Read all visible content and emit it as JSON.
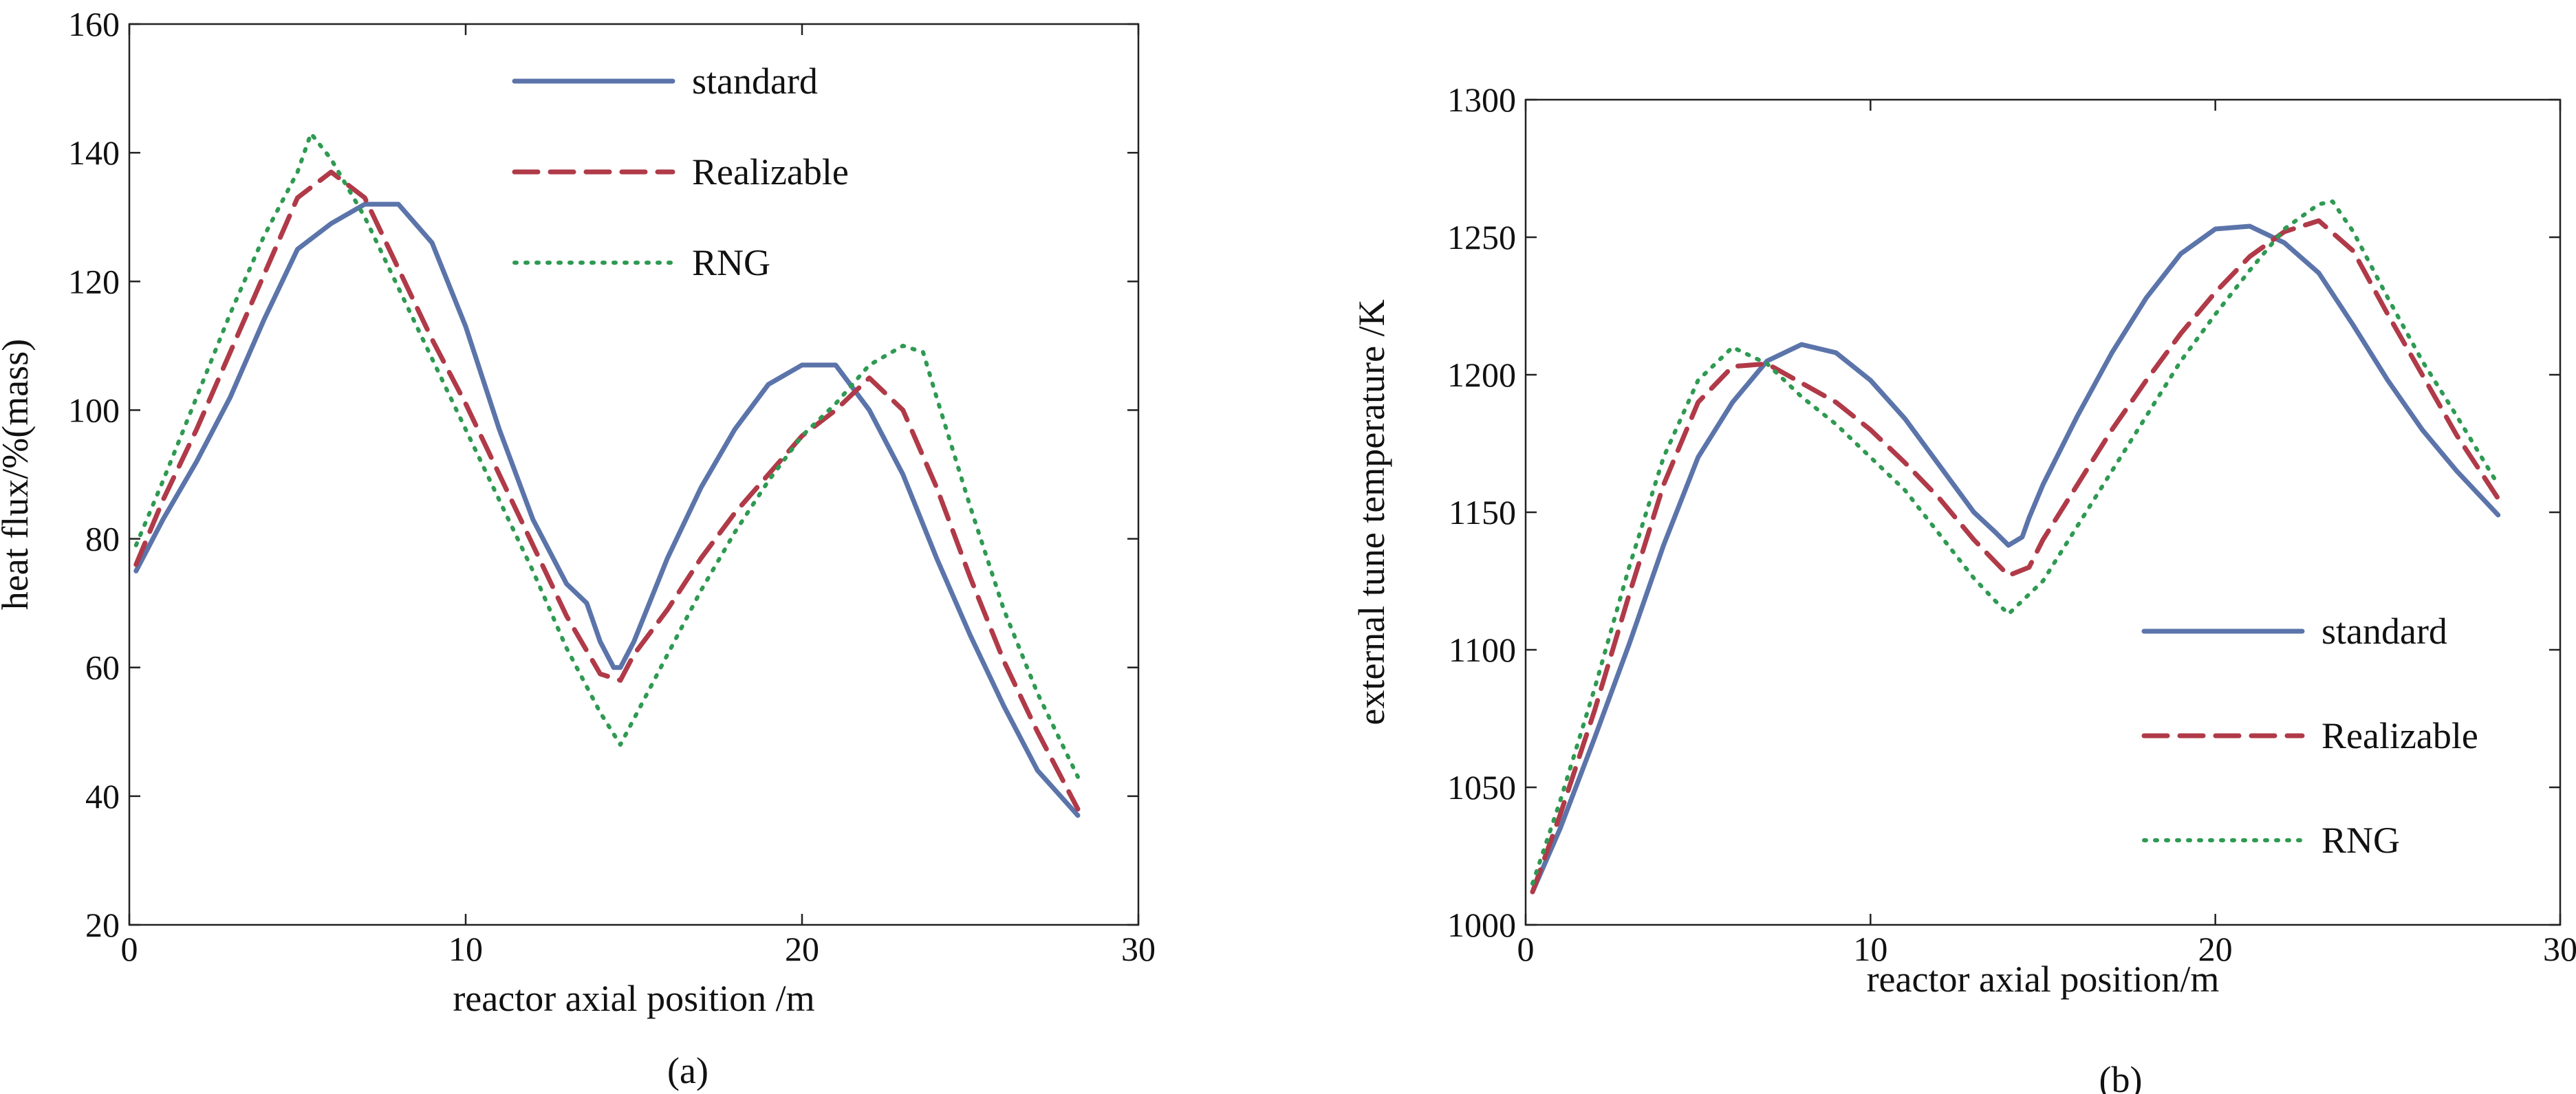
{
  "figure": {
    "panels": [
      "(a)",
      "(b)"
    ]
  },
  "colors": {
    "standard": "#5b74aa",
    "Realizable": "#b03a48",
    "RNG": "#2e9a52"
  },
  "chart_data": [
    {
      "type": "line",
      "panel_label": "(a)",
      "xlabel": "reactor axial position /m",
      "ylabel": "heat flux/%(mass)",
      "xlim": [
        0,
        30
      ],
      "ylim": [
        20,
        160
      ],
      "xticks": [
        "0",
        "10",
        "20",
        "30"
      ],
      "yticks": [
        "20",
        "40",
        "60",
        "80",
        "100",
        "120",
        "140",
        "160"
      ],
      "legend_position": "top-center",
      "series": [
        {
          "name": "standard",
          "style": "solid",
          "x": [
            0.2,
            1,
            2,
            3,
            4,
            5,
            6,
            7,
            8,
            9,
            10,
            11,
            12,
            13,
            13.6,
            14,
            14.4,
            14.6,
            15,
            16,
            17,
            18,
            19,
            20,
            21,
            22,
            23,
            24,
            25,
            26,
            27,
            28.2
          ],
          "y": [
            75,
            83,
            92,
            102,
            114,
            125,
            129,
            132,
            132,
            126,
            113,
            97,
            83,
            73,
            70,
            64,
            60,
            60,
            64,
            77,
            88,
            97,
            104,
            107,
            107,
            100,
            90,
            77,
            65,
            54,
            44,
            37
          ]
        },
        {
          "name": "Realizable",
          "style": "dashed",
          "x": [
            0.2,
            1,
            2,
            3,
            4,
            5,
            6,
            7,
            8,
            9,
            10,
            11,
            12,
            13,
            14,
            14.6,
            15,
            16,
            17,
            18,
            19,
            20,
            21,
            22,
            23,
            24,
            25,
            26,
            27,
            28.2
          ],
          "y": [
            76,
            86,
            97,
            109,
            121,
            133,
            137,
            133,
            122,
            111,
            101,
            90,
            79,
            68,
            59,
            58,
            62,
            69,
            77,
            84,
            90,
            96,
            100,
            105,
            100,
            88,
            74,
            61,
            50,
            38
          ]
        },
        {
          "name": "RNG",
          "style": "dotted",
          "x": [
            0.2,
            1,
            2,
            3,
            4,
            5,
            5.4,
            6,
            7,
            8,
            9,
            10,
            11,
            12,
            13,
            14,
            14.6,
            15,
            16,
            17,
            18,
            19,
            20,
            21,
            22,
            23,
            23.6,
            24,
            25,
            26,
            27,
            28.2
          ],
          "y": [
            79,
            89,
            102,
            115,
            127,
            137,
            143,
            139,
            130,
            119,
            108,
            97,
            86,
            75,
            63,
            53,
            48,
            52,
            62,
            72,
            81,
            89,
            96,
            101,
            107,
            110,
            109,
            102,
            85,
            69,
            56,
            43
          ]
        }
      ]
    },
    {
      "type": "line",
      "panel_label": "(b)",
      "xlabel": "reactor axial position/m",
      "ylabel": "external tune  temperature /K",
      "xlim": [
        0,
        30
      ],
      "ylim": [
        1000,
        1300
      ],
      "xticks": [
        "0",
        "10",
        "20",
        "30"
      ],
      "yticks": [
        "1000",
        "1050",
        "1100",
        "1150",
        "1200",
        "1250",
        "1300"
      ],
      "legend_position": "bottom-right",
      "series": [
        {
          "name": "standard",
          "style": "solid",
          "x": [
            0.2,
            1,
            2,
            3,
            4,
            5,
            6,
            7,
            8,
            9,
            10,
            11,
            12,
            13,
            13.6,
            14,
            14.4,
            14.6,
            15,
            16,
            17,
            18,
            19,
            20,
            21,
            22,
            23,
            24,
            25,
            26,
            27,
            28.2
          ],
          "y": [
            1012,
            1035,
            1068,
            1102,
            1138,
            1170,
            1190,
            1205,
            1211,
            1208,
            1198,
            1184,
            1167,
            1150,
            1143,
            1138,
            1141,
            1148,
            1160,
            1185,
            1208,
            1228,
            1244,
            1253,
            1254,
            1248,
            1237,
            1218,
            1198,
            1180,
            1165,
            1149
          ]
        },
        {
          "name": "Realizable",
          "style": "dashed",
          "x": [
            0.2,
            1,
            2,
            3,
            4,
            5,
            6,
            7,
            8,
            9,
            10,
            11,
            12,
            13,
            14,
            14.6,
            15,
            16,
            17,
            18,
            19,
            20,
            21,
            22,
            23,
            24,
            25,
            26,
            27,
            28.2
          ],
          "y": [
            1012,
            1040,
            1078,
            1120,
            1160,
            1190,
            1203,
            1204,
            1197,
            1190,
            1180,
            1168,
            1155,
            1140,
            1127,
            1130,
            1140,
            1160,
            1180,
            1198,
            1215,
            1230,
            1243,
            1252,
            1256,
            1245,
            1222,
            1200,
            1178,
            1155
          ]
        },
        {
          "name": "RNG",
          "style": "dotted",
          "x": [
            0.2,
            1,
            2,
            3,
            4,
            5,
            6,
            7,
            8,
            9,
            10,
            11,
            12,
            13,
            13.6,
            14,
            15,
            16,
            17,
            18,
            19,
            20,
            21,
            22,
            23,
            23.4,
            24,
            25,
            26,
            27,
            28.2
          ],
          "y": [
            1015,
            1045,
            1086,
            1130,
            1170,
            1198,
            1210,
            1204,
            1192,
            1182,
            1170,
            1158,
            1142,
            1126,
            1118,
            1113,
            1125,
            1145,
            1165,
            1185,
            1205,
            1222,
            1238,
            1253,
            1262,
            1263,
            1252,
            1228,
            1205,
            1185,
            1160
          ]
        }
      ]
    }
  ]
}
